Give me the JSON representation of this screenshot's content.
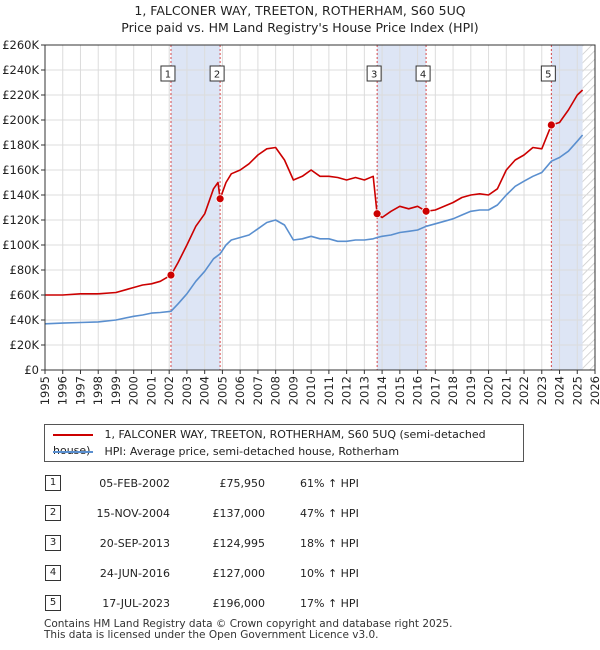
{
  "colors": {
    "property_line": "#cc0000",
    "hpi_line": "#5a8fcf",
    "shade": "#dde5f5",
    "grid": "#dcdcdc",
    "marker_line": "#cc0000"
  },
  "title": {
    "line1": "1, FALCONER WAY, TREETON, ROTHERHAM, S60 5UQ",
    "line2": "Price paid vs. HM Land Registry's House Price Index (HPI)"
  },
  "legend": {
    "property_label": "1, FALCONER WAY, TREETON, ROTHERHAM, S60 5UQ (semi-detached house)",
    "hpi_label": "HPI: Average price, semi-detached house, Rotherham"
  },
  "sales": [
    {
      "num": "1",
      "date": "05-FEB-2002",
      "price": "£75,950",
      "hpi": "61% ↑ HPI"
    },
    {
      "num": "2",
      "date": "15-NOV-2004",
      "price": "£137,000",
      "hpi": "47% ↑ HPI"
    },
    {
      "num": "3",
      "date": "20-SEP-2013",
      "price": "£124,995",
      "hpi": "18% ↑ HPI"
    },
    {
      "num": "4",
      "date": "24-JUN-2016",
      "price": "£127,000",
      "hpi": "10% ↑ HPI"
    },
    {
      "num": "5",
      "date": "17-JUL-2023",
      "price": "£196,000",
      "hpi": "17% ↑ HPI"
    }
  ],
  "footer": {
    "line1": "Contains HM Land Registry data © Crown copyright and database right 2025.",
    "line2": "This data is licensed under the Open Government Licence v3.0."
  },
  "chart_data": {
    "type": "line",
    "title": "1, FALCONER WAY, TREETON, ROTHERHAM, S60 5UQ — Price paid vs. HM Land Registry's House Price Index (HPI)",
    "xlabel": "",
    "ylabel": "",
    "xlim": [
      1995,
      2026
    ],
    "ylim": [
      0,
      260000
    ],
    "x_ticks": [
      1995,
      1996,
      1997,
      1998,
      1999,
      2000,
      2001,
      2002,
      2003,
      2004,
      2005,
      2006,
      2007,
      2008,
      2009,
      2010,
      2011,
      2012,
      2013,
      2014,
      2015,
      2016,
      2017,
      2018,
      2019,
      2020,
      2021,
      2022,
      2023,
      2024,
      2025,
      2026
    ],
    "y_ticks": [
      0,
      20000,
      40000,
      60000,
      80000,
      100000,
      120000,
      140000,
      160000,
      180000,
      200000,
      220000,
      240000,
      260000
    ],
    "y_tick_labels": [
      "£0",
      "£20K",
      "£40K",
      "£60K",
      "£80K",
      "£100K",
      "£120K",
      "£140K",
      "£160K",
      "£180K",
      "£200K",
      "£220K",
      "£240K",
      "£260K"
    ],
    "grid": true,
    "shaded_ranges": [
      [
        2002.1,
        2004.87
      ],
      [
        2013.72,
        2016.48
      ],
      [
        2023.54,
        2025.3
      ]
    ],
    "hatched_range": [
      2025.3,
      2026
    ],
    "series": [
      {
        "name": "1, FALCONER WAY, TREETON, ROTHERHAM, S60 5UQ (semi-detached house)",
        "color": "#cc0000",
        "x": [
          1995.0,
          1996.0,
          1997.0,
          1998.0,
          1999.0,
          2000.0,
          2000.5,
          2001.0,
          2001.5,
          2002.1,
          2002.5,
          2003.0,
          2003.5,
          2004.0,
          2004.5,
          2004.75,
          2004.87,
          2005.2,
          2005.5,
          2006.0,
          2006.5,
          2007.0,
          2007.5,
          2008.0,
          2008.5,
          2009.0,
          2009.5,
          2010.0,
          2010.5,
          2011.0,
          2011.5,
          2012.0,
          2012.5,
          2013.0,
          2013.5,
          2013.72,
          2014.0,
          2014.5,
          2015.0,
          2015.5,
          2016.0,
          2016.48,
          2017.0,
          2017.5,
          2018.0,
          2018.5,
          2019.0,
          2019.5,
          2020.0,
          2020.5,
          2021.0,
          2021.5,
          2022.0,
          2022.5,
          2023.0,
          2023.54,
          2024.0,
          2024.5,
          2025.0,
          2025.3
        ],
        "y": [
          60000,
          60000,
          61000,
          61000,
          62000,
          66000,
          68000,
          69000,
          71000,
          75950,
          86000,
          100000,
          115000,
          125000,
          145000,
          150000,
          137000,
          150000,
          157000,
          160000,
          165000,
          172000,
          177000,
          178000,
          168000,
          152000,
          155000,
          160000,
          155000,
          155000,
          154000,
          152000,
          154000,
          152000,
          155000,
          124995,
          122000,
          127000,
          131000,
          129000,
          131000,
          127000,
          128000,
          131000,
          134000,
          138000,
          140000,
          141000,
          140000,
          145000,
          160000,
          168000,
          172000,
          178000,
          177000,
          196000,
          198000,
          208000,
          220000,
          224000
        ]
      },
      {
        "name": "HPI: Average price, semi-detached house, Rotherham",
        "color": "#5a8fcf",
        "x": [
          1995.0,
          1996.0,
          1997.0,
          1998.0,
          1999.0,
          2000.0,
          2000.5,
          2001.0,
          2001.5,
          2002.1,
          2002.5,
          2003.0,
          2003.5,
          2004.0,
          2004.5,
          2004.87,
          2005.2,
          2005.5,
          2006.0,
          2006.5,
          2007.0,
          2007.5,
          2008.0,
          2008.5,
          2009.0,
          2009.5,
          2010.0,
          2010.5,
          2011.0,
          2011.5,
          2012.0,
          2012.5,
          2013.0,
          2013.5,
          2013.72,
          2014.0,
          2014.5,
          2015.0,
          2015.5,
          2016.0,
          2016.48,
          2017.0,
          2017.5,
          2018.0,
          2018.5,
          2019.0,
          2019.5,
          2020.0,
          2020.5,
          2021.0,
          2021.5,
          2022.0,
          2022.5,
          2023.0,
          2023.54,
          2024.0,
          2024.5,
          2025.0,
          2025.3
        ],
        "y": [
          37000,
          37500,
          38000,
          38500,
          40000,
          43000,
          44000,
          45500,
          46000,
          47000,
          53000,
          61000,
          71000,
          79000,
          89000,
          93000,
          100000,
          104000,
          106000,
          108000,
          113000,
          118000,
          120000,
          116000,
          104000,
          105000,
          107000,
          105000,
          105000,
          103000,
          103000,
          104000,
          104000,
          105000,
          106000,
          107000,
          108000,
          110000,
          111000,
          112000,
          115000,
          117000,
          119000,
          121000,
          124000,
          127000,
          128000,
          128000,
          132000,
          140000,
          147000,
          151000,
          155000,
          158000,
          167000,
          170000,
          175000,
          183000,
          188000
        ]
      }
    ],
    "sale_points": [
      {
        "label": "1",
        "x": 2002.1,
        "y": 75950
      },
      {
        "label": "2",
        "x": 2004.87,
        "y": 137000
      },
      {
        "label": "3",
        "x": 2013.72,
        "y": 124995
      },
      {
        "label": "4",
        "x": 2016.48,
        "y": 127000
      },
      {
        "label": "5",
        "x": 2023.54,
        "y": 196000
      }
    ]
  }
}
